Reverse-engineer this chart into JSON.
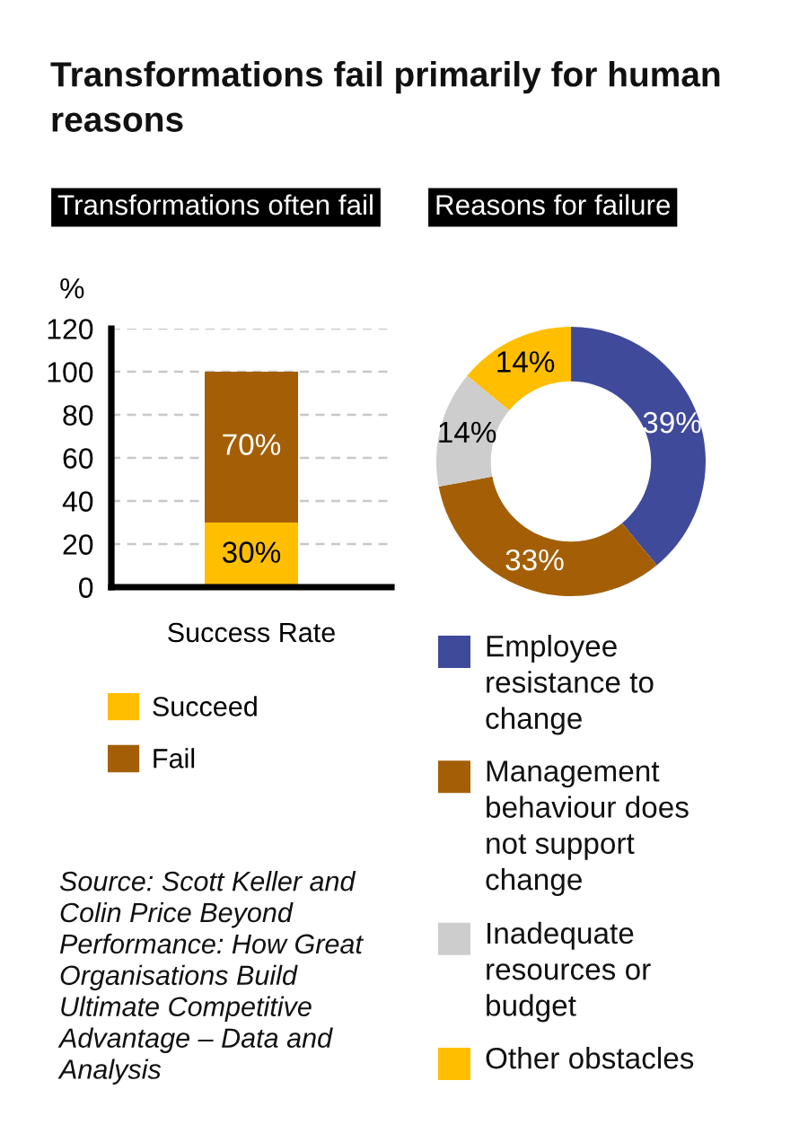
{
  "chart_data": [
    {
      "type": "bar",
      "title": "Transformations fail primarily for human reasons",
      "subtitle": "Transformations often fail",
      "categories": [
        "Success Rate"
      ],
      "stacked": true,
      "series": [
        {
          "name": "Succeed",
          "color": "#FFBF00",
          "values": [
            30
          ],
          "value_labels": [
            "30%"
          ]
        },
        {
          "name": "Fail",
          "color": "#A45F06",
          "values": [
            70
          ],
          "value_labels": [
            "70%"
          ]
        }
      ],
      "ylabel": "%",
      "ylim": [
        0,
        120
      ],
      "yticks": [
        0,
        20,
        40,
        60,
        80,
        100,
        120
      ],
      "grid": "y",
      "legend": "bottom",
      "annotations": [
        "Source: Scott Keller and Colin Price Beyond Performance: How Great Organisations Build Ultimate Competitive Advantage – Data and Analysis"
      ]
    },
    {
      "type": "donut",
      "title": "Reasons for failure",
      "categories": [
        "Employee resistance to change",
        "Management behaviour does not support change",
        "Inadequate resources or budget",
        "Other obstacles"
      ],
      "values": [
        39,
        33,
        14,
        14
      ],
      "colors": [
        "#3F4A9B",
        "#A45F06",
        "#CDCDCD",
        "#FFBF00"
      ],
      "value_labels": [
        "39%",
        "33%",
        "14%",
        "14%"
      ],
      "legend": "bottom"
    }
  ]
}
